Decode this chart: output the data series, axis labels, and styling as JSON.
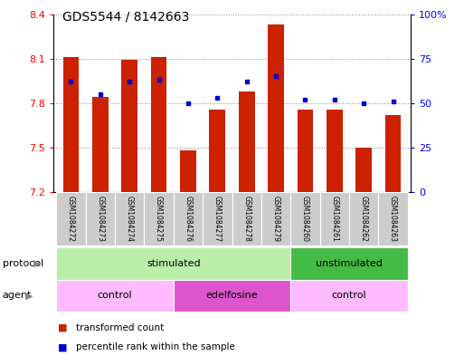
{
  "title": "GDS5544 / 8142663",
  "samples": [
    "GSM1084272",
    "GSM1084273",
    "GSM1084274",
    "GSM1084275",
    "GSM1084276",
    "GSM1084277",
    "GSM1084278",
    "GSM1084279",
    "GSM1084260",
    "GSM1084261",
    "GSM1084262",
    "GSM1084263"
  ],
  "transformed_count": [
    8.11,
    7.84,
    8.09,
    8.11,
    7.48,
    7.76,
    7.88,
    8.33,
    7.76,
    7.76,
    7.5,
    7.72
  ],
  "percentile_rank": [
    62,
    55,
    62,
    63,
    50,
    53,
    62,
    65,
    52,
    52,
    50,
    51
  ],
  "ylim_left": [
    7.2,
    8.4
  ],
  "ylim_right": [
    0,
    100
  ],
  "yticks_left": [
    7.2,
    7.5,
    7.8,
    8.1,
    8.4
  ],
  "yticks_right": [
    0,
    25,
    50,
    75,
    100
  ],
  "ytick_labels_right": [
    "0",
    "25",
    "50",
    "75",
    "100%"
  ],
  "bar_color": "#cc2200",
  "dot_color": "#0000cc",
  "bar_bottom": 7.2,
  "protocol_groups": [
    {
      "label": "stimulated",
      "start": 0,
      "end": 8,
      "color": "#bbeeaa"
    },
    {
      "label": "unstimulated",
      "start": 8,
      "end": 12,
      "color": "#44bb44"
    }
  ],
  "agent_groups": [
    {
      "label": "control",
      "start": 0,
      "end": 4,
      "color": "#ffbbff"
    },
    {
      "label": "edelfosine",
      "start": 4,
      "end": 8,
      "color": "#dd55cc"
    },
    {
      "label": "control",
      "start": 8,
      "end": 12,
      "color": "#ffbbff"
    }
  ],
  "legend_bar_label": "transformed count",
  "legend_dot_label": "percentile rank within the sample",
  "protocol_label": "protocol",
  "agent_label": "agent",
  "background_color": "#ffffff",
  "grid_color": "#888888",
  "sample_bg": "#cccccc",
  "arrow_color": "#888888"
}
